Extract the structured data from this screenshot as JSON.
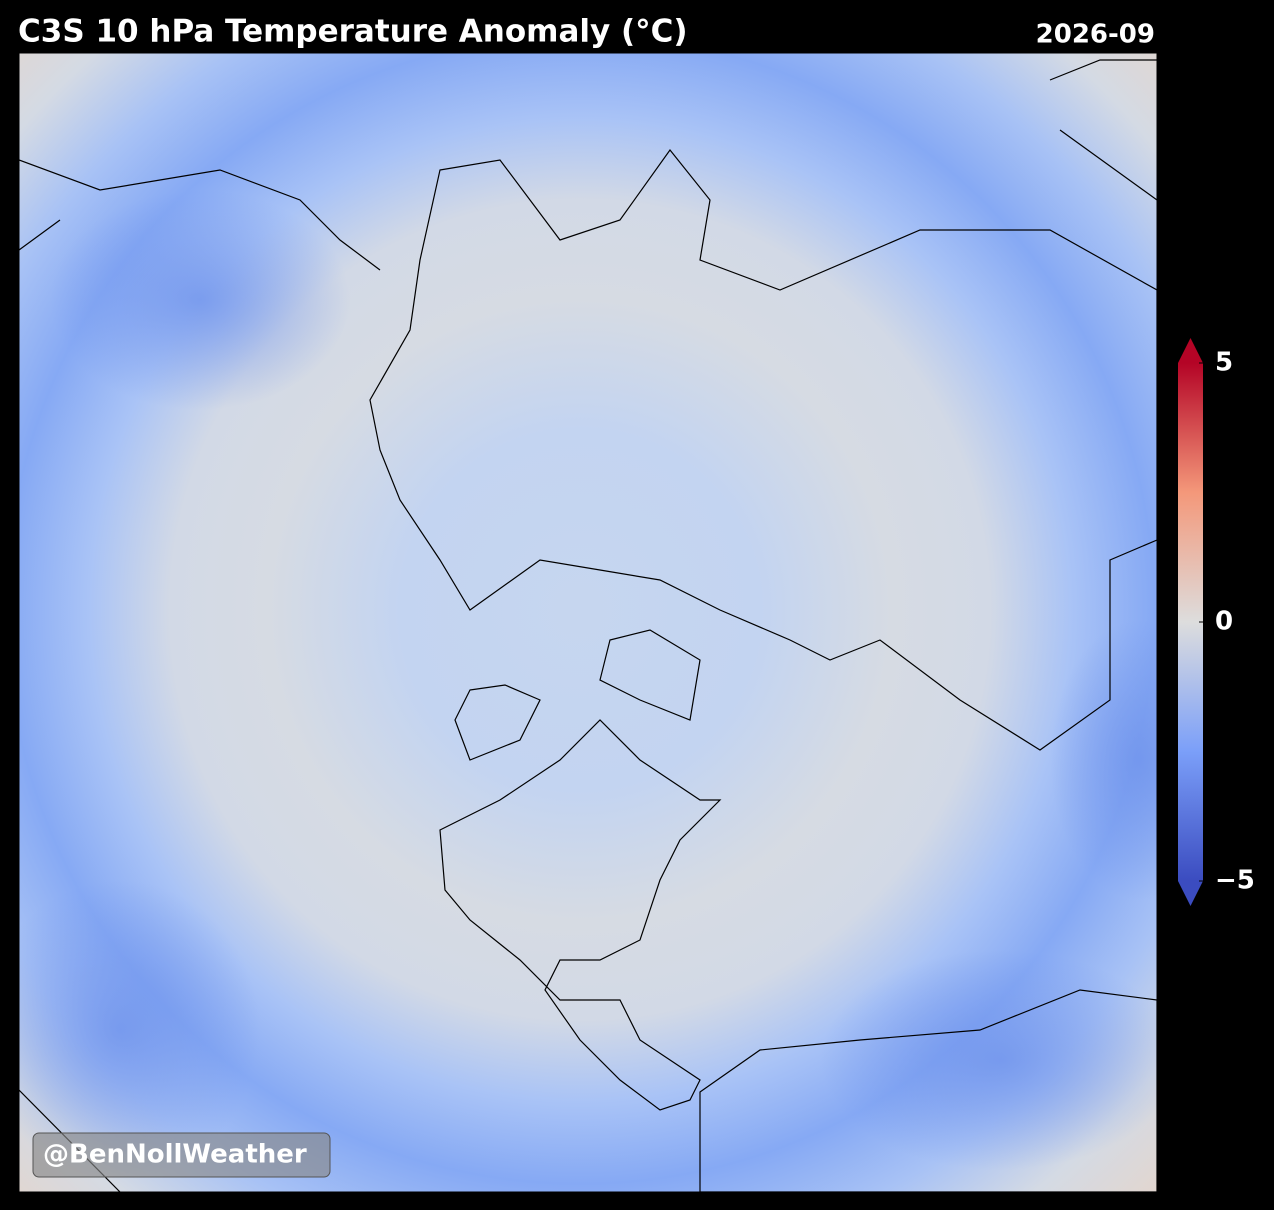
{
  "title": "C3S 10 hPa Temperature Anomaly (°C)",
  "date": "2026-09",
  "watermark": "@BenNollWeather",
  "colorbar": {
    "lim": [
      -5,
      5
    ],
    "ticks": [
      {
        "value": -5,
        "label": "−5"
      },
      0,
      5
    ]
  }
}
